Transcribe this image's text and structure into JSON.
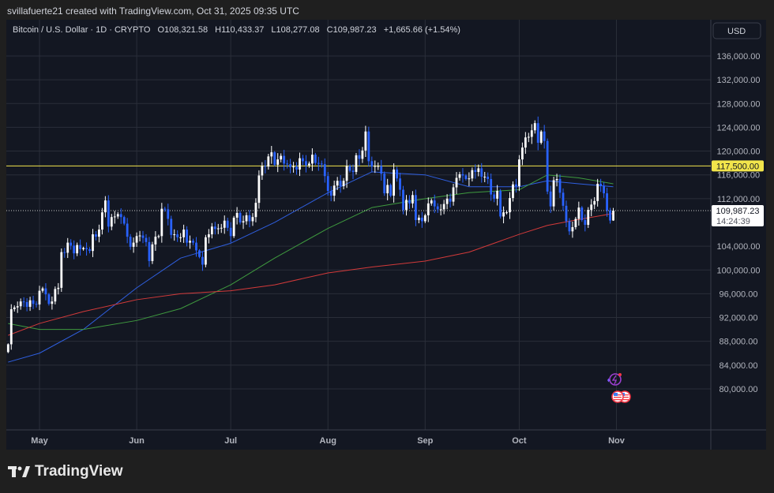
{
  "credit": "svillafuerte21 created with TradingView.com, Oct 31, 2025 09:35 UTC",
  "legend": {
    "symbol": "Bitcoin / U.S. Dollar · 1D · CRYPTO",
    "open": "O108,321.58",
    "high": "H110,433.37",
    "low": "L108,277.08",
    "close": "C109,987.23",
    "change": "+1,665.66 (+1.54%)"
  },
  "currency_button": "USD",
  "logo_text": "TradingView",
  "last_price_label": "109,987.23",
  "countdown": "14:24:39",
  "level_label": "117,500.00",
  "colors": {
    "background": "#131722",
    "up": "#ffffff",
    "down": "#2962ff",
    "ma_blue": "#2f5fe0",
    "ma_green": "#3f9b3f",
    "ma_red": "#d33a3a",
    "level": "#f2e54b",
    "grid": "#2a2e39"
  },
  "chart_data": {
    "type": "candlestick",
    "title": "Bitcoin / U.S. Dollar · 1D · CRYPTO",
    "start_date": "2025-04-21",
    "ylim": [
      76000,
      140000
    ],
    "y_ticks": [
      "136,000.00",
      "132,000.00",
      "128,000.00",
      "124,000.00",
      "120,000.00",
      "116,000.00",
      "112,000.00",
      "104,000.00",
      "100,000.00",
      "96,000.00",
      "92,000.00",
      "88,000.00",
      "84,000.00",
      "80,000.00"
    ],
    "y_tick_values": [
      136000,
      132000,
      128000,
      124000,
      120000,
      116000,
      112000,
      104000,
      100000,
      96000,
      92000,
      88000,
      84000,
      80000
    ],
    "x_ticks": [
      {
        "label": "May",
        "date": "2025-05-01"
      },
      {
        "label": "Jun",
        "date": "2025-06-01"
      },
      {
        "label": "Jul",
        "date": "2025-07-01"
      },
      {
        "label": "Aug",
        "date": "2025-08-01"
      },
      {
        "label": "Sep",
        "date": "2025-09-01"
      },
      {
        "label": "Oct",
        "date": "2025-10-01"
      },
      {
        "label": "Nov",
        "date": "2025-11-01"
      }
    ],
    "closes": [
      87500,
      93400,
      93700,
      93900,
      94700,
      94600,
      93800,
      94900,
      94300,
      94200,
      96500,
      96900,
      95900,
      94300,
      94700,
      96800,
      97000,
      103000,
      102900,
      104600,
      104100,
      102800,
      104200,
      103500,
      103700,
      103500,
      103200,
      106000,
      105600,
      106800,
      109700,
      111700,
      107300,
      108900,
      109000,
      109400,
      108900,
      107800,
      105600,
      103900,
      104600,
      105700,
      105800,
      105400,
      104700,
      101500,
      104300,
      105600,
      105700,
      110300,
      110200,
      108600,
      105900,
      106000,
      105500,
      105500,
      106800,
      104600,
      104900,
      104600,
      103300,
      102200,
      100900,
      105500,
      106000,
      107300,
      106900,
      107000,
      107100,
      108300,
      107100,
      105700,
      108800,
      109600,
      108000,
      108200,
      109200,
      108200,
      108900,
      111300,
      115900,
      117500,
      117400,
      119100,
      119800,
      117700,
      118600,
      119200,
      117900,
      117800,
      117300,
      117400,
      116900,
      118800,
      118300,
      117600,
      117900,
      119400,
      118000,
      117900,
      117800,
      115800,
      113300,
      112500,
      114200,
      115000,
      114100,
      115000,
      117500,
      116700,
      116500,
      119300,
      118700,
      120100,
      123300,
      118300,
      117400,
      117500,
      117500,
      116200,
      112900,
      114300,
      112500,
      116900,
      115400,
      113500,
      110100,
      111800,
      111200,
      112600,
      108400,
      108800,
      108200,
      109200,
      111200,
      111700,
      110700,
      110200,
      110200,
      111100,
      112000,
      111500,
      113900,
      115500,
      116100,
      115900,
      115300,
      115400,
      116800,
      116500,
      117100,
      115700,
      115700,
      115300,
      112700,
      112000,
      113300,
      109000,
      109700,
      109700,
      112100,
      114400,
      114100,
      118600,
      120600,
      122300,
      122400,
      123500,
      124700,
      121400,
      123300,
      121700,
      113200,
      110700,
      115100,
      115300,
      113000,
      110800,
      108200,
      106500,
      107200,
      108600,
      110500,
      108400,
      107600,
      110100,
      111000,
      111600,
      114500,
      114100,
      112900,
      110000,
      108321.58,
      109987.23
    ],
    "last_candle": {
      "open": 108321.58,
      "high": 110433.37,
      "low": 108277.08,
      "close": 109987.23
    },
    "moving_averages": [
      {
        "color": "#2f5fe0",
        "points": [
          [
            "2025-04-21",
            84500
          ],
          [
            "2025-05-01",
            86000
          ],
          [
            "2025-05-15",
            90000
          ],
          [
            "2025-06-01",
            97000
          ],
          [
            "2025-06-15",
            102000
          ],
          [
            "2025-07-01",
            104500
          ],
          [
            "2025-07-15",
            108000
          ],
          [
            "2025-08-01",
            113000
          ],
          [
            "2025-08-15",
            116500
          ],
          [
            "2025-09-01",
            116000
          ],
          [
            "2025-09-15",
            114000
          ],
          [
            "2025-10-01",
            114000
          ],
          [
            "2025-10-10",
            115000
          ],
          [
            "2025-10-20",
            114500
          ],
          [
            "2025-10-31",
            114000
          ]
        ]
      },
      {
        "color": "#3f9b3f",
        "points": [
          [
            "2025-04-21",
            91000
          ],
          [
            "2025-05-01",
            90000
          ],
          [
            "2025-05-15",
            90000
          ],
          [
            "2025-06-01",
            91500
          ],
          [
            "2025-06-15",
            93500
          ],
          [
            "2025-07-01",
            97500
          ],
          [
            "2025-07-15",
            102000
          ],
          [
            "2025-08-01",
            107000
          ],
          [
            "2025-08-15",
            110500
          ],
          [
            "2025-09-01",
            112000
          ],
          [
            "2025-09-15",
            113000
          ],
          [
            "2025-10-01",
            113500
          ],
          [
            "2025-10-10",
            116000
          ],
          [
            "2025-10-20",
            115500
          ],
          [
            "2025-10-31",
            114500
          ]
        ]
      },
      {
        "color": "#d33a3a",
        "points": [
          [
            "2025-04-21",
            89000
          ],
          [
            "2025-05-01",
            91000
          ],
          [
            "2025-05-15",
            93000
          ],
          [
            "2025-06-01",
            95000
          ],
          [
            "2025-06-15",
            96000
          ],
          [
            "2025-07-01",
            96500
          ],
          [
            "2025-07-15",
            97500
          ],
          [
            "2025-08-01",
            99500
          ],
          [
            "2025-08-15",
            100500
          ],
          [
            "2025-09-01",
            101500
          ],
          [
            "2025-09-15",
            103000
          ],
          [
            "2025-10-01",
            106000
          ],
          [
            "2025-10-10",
            107500
          ],
          [
            "2025-10-20",
            108500
          ],
          [
            "2025-10-31",
            109500
          ]
        ]
      }
    ],
    "horizontal_level": 117500,
    "last_price": 109987.23
  }
}
